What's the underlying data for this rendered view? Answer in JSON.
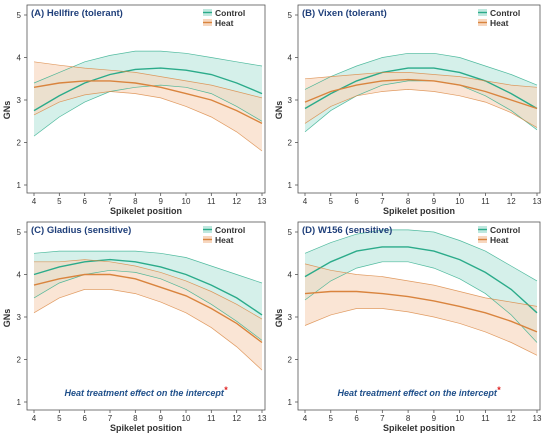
{
  "colors": {
    "control_line": "#2bab8a",
    "control_fill": "#bfe8df",
    "heat_line": "#d9843e",
    "heat_fill": "#f7d7bf",
    "title": "#1f3f7a",
    "axis": "#333333",
    "annotation": "#1f4f8a",
    "star": "#e02020"
  },
  "shared": {
    "ylabel": "GNs",
    "xlabel": "Spikelet position",
    "legend": [
      "Control",
      "Heat"
    ],
    "annotation": "Heat treatment effect on the intercept",
    "annotation_mark": "*",
    "legend_position": "top-right"
  },
  "chart_data": [
    {
      "type": "line",
      "title": "(A) Hellfire (tolerant)",
      "xlabel": "Spikelet position",
      "ylabel": "GNs",
      "x": [
        4,
        5,
        6,
        7,
        8,
        9,
        10,
        11,
        12,
        13
      ],
      "xlim": [
        4,
        13
      ],
      "ylim": [
        1,
        5
      ],
      "yticks": [
        1,
        2,
        3,
        4,
        5
      ],
      "grid": false,
      "annotation": "",
      "series": [
        {
          "name": "Control",
          "values": [
            2.75,
            3.1,
            3.4,
            3.6,
            3.72,
            3.75,
            3.7,
            3.6,
            3.4,
            3.15
          ],
          "upper": [
            3.4,
            3.65,
            3.9,
            4.05,
            4.15,
            4.15,
            4.1,
            4.0,
            3.9,
            3.8
          ],
          "lower": [
            2.15,
            2.6,
            2.95,
            3.2,
            3.3,
            3.35,
            3.3,
            3.15,
            2.85,
            2.5
          ]
        },
        {
          "name": "Heat",
          "values": [
            3.3,
            3.4,
            3.45,
            3.45,
            3.4,
            3.3,
            3.15,
            3.0,
            2.75,
            2.45
          ],
          "upper": [
            3.9,
            3.82,
            3.75,
            3.7,
            3.65,
            3.55,
            3.45,
            3.35,
            3.2,
            3.05
          ],
          "lower": [
            2.65,
            2.95,
            3.12,
            3.2,
            3.15,
            3.05,
            2.85,
            2.6,
            2.25,
            1.8
          ]
        }
      ]
    },
    {
      "type": "line",
      "title": "(B) Vixen (tolerant)",
      "xlabel": "Spikelet position",
      "ylabel": "GNs",
      "x": [
        4,
        5,
        6,
        7,
        8,
        9,
        10,
        11,
        12,
        13
      ],
      "xlim": [
        4,
        13
      ],
      "ylim": [
        1,
        5
      ],
      "yticks": [
        1,
        2,
        3,
        4,
        5
      ],
      "grid": false,
      "annotation": "",
      "series": [
        {
          "name": "Control",
          "values": [
            2.8,
            3.15,
            3.45,
            3.65,
            3.75,
            3.75,
            3.65,
            3.45,
            3.15,
            2.8
          ],
          "upper": [
            3.25,
            3.55,
            3.8,
            4.0,
            4.1,
            4.1,
            4.0,
            3.8,
            3.6,
            3.35
          ],
          "lower": [
            2.25,
            2.75,
            3.1,
            3.35,
            3.45,
            3.45,
            3.35,
            3.1,
            2.75,
            2.3
          ]
        },
        {
          "name": "Heat",
          "values": [
            2.95,
            3.2,
            3.35,
            3.45,
            3.48,
            3.45,
            3.35,
            3.2,
            3.0,
            2.8
          ],
          "upper": [
            3.5,
            3.55,
            3.6,
            3.65,
            3.65,
            3.6,
            3.55,
            3.45,
            3.35,
            3.3
          ],
          "lower": [
            2.45,
            2.85,
            3.1,
            3.2,
            3.25,
            3.2,
            3.1,
            2.95,
            2.7,
            2.35
          ]
        }
      ]
    },
    {
      "type": "line",
      "title": "(C) Gladius (sensitive)",
      "xlabel": "Spikelet position",
      "ylabel": "GNs",
      "x": [
        4,
        5,
        6,
        7,
        8,
        9,
        10,
        11,
        12,
        13
      ],
      "xlim": [
        4,
        13
      ],
      "ylim": [
        1,
        5
      ],
      "yticks": [
        1,
        2,
        3,
        4,
        5
      ],
      "grid": false,
      "annotation": "Heat treatment effect on the intercept",
      "series": [
        {
          "name": "Control",
          "values": [
            4.0,
            4.18,
            4.3,
            4.35,
            4.3,
            4.18,
            4.0,
            3.75,
            3.45,
            3.05
          ],
          "upper": [
            4.5,
            4.55,
            4.55,
            4.55,
            4.55,
            4.5,
            4.4,
            4.2,
            4.0,
            3.8
          ],
          "lower": [
            3.45,
            3.8,
            4.0,
            4.1,
            4.05,
            3.9,
            3.65,
            3.3,
            2.9,
            2.45
          ]
        },
        {
          "name": "Heat",
          "values": [
            3.75,
            3.9,
            4.0,
            4.0,
            3.9,
            3.7,
            3.5,
            3.2,
            2.85,
            2.4
          ],
          "upper": [
            4.3,
            4.3,
            4.35,
            4.3,
            4.2,
            4.05,
            3.85,
            3.6,
            3.3,
            2.95
          ],
          "lower": [
            3.1,
            3.45,
            3.65,
            3.65,
            3.55,
            3.35,
            3.1,
            2.75,
            2.3,
            1.75
          ]
        }
      ]
    },
    {
      "type": "line",
      "title": "(D) W156 (sensitive)",
      "xlabel": "Spikelet position",
      "ylabel": "GNs",
      "x": [
        4,
        5,
        6,
        7,
        8,
        9,
        10,
        11,
        12,
        13
      ],
      "xlim": [
        4,
        13
      ],
      "ylim": [
        1,
        5
      ],
      "yticks": [
        1,
        2,
        3,
        4,
        5
      ],
      "grid": false,
      "annotation": "Heat treatment effect on the intercept",
      "series": [
        {
          "name": "Control",
          "values": [
            3.95,
            4.3,
            4.55,
            4.65,
            4.65,
            4.55,
            4.35,
            4.05,
            3.65,
            3.1
          ],
          "upper": [
            4.5,
            4.75,
            4.95,
            5.05,
            5.05,
            5.0,
            4.8,
            4.55,
            4.2,
            3.85
          ],
          "lower": [
            3.4,
            3.85,
            4.15,
            4.3,
            4.3,
            4.15,
            3.9,
            3.55,
            3.05,
            2.4
          ]
        },
        {
          "name": "Heat",
          "values": [
            3.55,
            3.6,
            3.6,
            3.55,
            3.48,
            3.38,
            3.25,
            3.1,
            2.9,
            2.65
          ],
          "upper": [
            4.25,
            4.1,
            4.0,
            3.95,
            3.85,
            3.75,
            3.6,
            3.45,
            3.35,
            3.25
          ],
          "lower": [
            2.8,
            3.05,
            3.2,
            3.2,
            3.12,
            3.0,
            2.85,
            2.65,
            2.4,
            2.1
          ]
        }
      ]
    }
  ]
}
